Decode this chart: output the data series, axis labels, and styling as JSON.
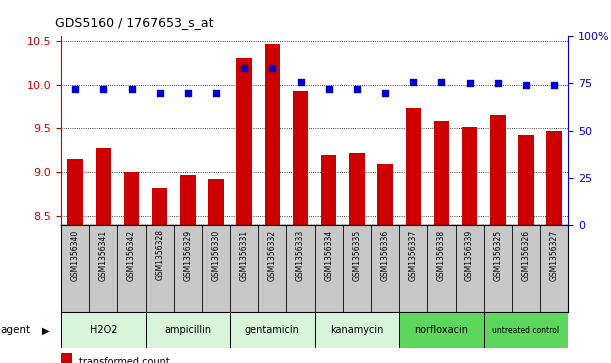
{
  "title": "GDS5160 / 1767653_s_at",
  "samples": [
    "GSM1356340",
    "GSM1356341",
    "GSM1356342",
    "GSM1356328",
    "GSM1356329",
    "GSM1356330",
    "GSM1356331",
    "GSM1356332",
    "GSM1356333",
    "GSM1356334",
    "GSM1356335",
    "GSM1356336",
    "GSM1356337",
    "GSM1356338",
    "GSM1356339",
    "GSM1356325",
    "GSM1356326",
    "GSM1356327"
  ],
  "transformed_count": [
    9.15,
    9.28,
    9.01,
    8.82,
    8.97,
    8.93,
    10.3,
    10.46,
    9.93,
    9.2,
    9.22,
    9.1,
    9.73,
    9.58,
    9.52,
    9.65,
    9.43,
    9.47
  ],
  "percentile_rank": [
    72,
    72,
    72,
    70,
    70,
    70,
    83,
    83,
    76,
    72,
    72,
    70,
    76,
    76,
    75,
    75,
    74,
    74
  ],
  "agents": [
    {
      "label": "H2O2",
      "start": 0,
      "end": 3,
      "color": "#d9f5d9"
    },
    {
      "label": "ampicillin",
      "start": 3,
      "end": 6,
      "color": "#d9f5d9"
    },
    {
      "label": "gentamicin",
      "start": 6,
      "end": 9,
      "color": "#d9f5d9"
    },
    {
      "label": "kanamycin",
      "start": 9,
      "end": 12,
      "color": "#d9f5d9"
    },
    {
      "label": "norfloxacin",
      "start": 12,
      "end": 15,
      "color": "#5cd65c"
    },
    {
      "label": "untreated control",
      "start": 15,
      "end": 18,
      "color": "#5cd65c"
    }
  ],
  "ylim_left": [
    8.4,
    10.55
  ],
  "ylim_right": [
    0,
    100
  ],
  "yticks_left": [
    8.5,
    9.0,
    9.5,
    10.0,
    10.5
  ],
  "yticks_right": [
    0,
    25,
    50,
    75,
    100
  ],
  "bar_color": "#cc0000",
  "dot_color": "#0000cc",
  "grid_color": "#000000",
  "bg_color": "#ffffff",
  "tick_area_bg": "#c8c8c8",
  "figsize": [
    6.11,
    3.63
  ],
  "dpi": 100
}
